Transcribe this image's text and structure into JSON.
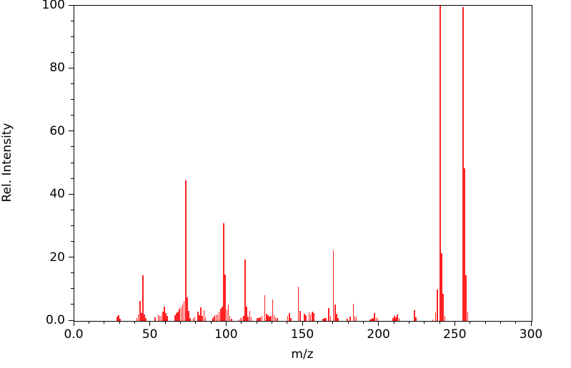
{
  "chart_data": {
    "type": "bar",
    "subtype": "mass-spectrum",
    "title": "",
    "xlabel": "m/z",
    "ylabel": "Rel. Intensity",
    "xlim": [
      0,
      300
    ],
    "ylim": [
      0,
      100
    ],
    "grid": false,
    "legend": "none",
    "background_color": "#ffffff",
    "frame_color": "#000000",
    "bar_color": "#ff2222",
    "x_major_ticks": [
      0,
      50,
      100,
      150,
      200,
      250,
      300
    ],
    "x_major_tick_labels": [
      "0.0",
      "50",
      "100",
      "150",
      "200",
      "250",
      "300"
    ],
    "x_minor_tick_step": 10,
    "y_major_ticks": [
      0,
      20,
      40,
      60,
      80,
      100
    ],
    "y_major_tick_labels": [
      "0.0",
      "20",
      "40",
      "60",
      "80",
      "100"
    ],
    "y_minor_tick_step": 5,
    "series": [
      {
        "name": "relative-intensity",
        "peaks": [
          [
            28,
            1.3
          ],
          [
            29,
            1.8
          ],
          [
            30,
            0.6
          ],
          [
            41,
            1.0
          ],
          [
            42,
            2.0
          ],
          [
            43,
            6.3
          ],
          [
            44,
            2.6
          ],
          [
            45,
            14.5
          ],
          [
            46,
            2.0
          ],
          [
            47,
            1.0
          ],
          [
            53,
            1.2
          ],
          [
            55,
            2.0
          ],
          [
            56,
            1.5
          ],
          [
            57,
            1.5
          ],
          [
            58,
            3.0
          ],
          [
            59,
            4.6
          ],
          [
            60,
            2.6
          ],
          [
            61,
            1.6
          ],
          [
            66,
            1.8
          ],
          [
            67,
            2.4
          ],
          [
            68,
            2.9
          ],
          [
            69,
            3.8
          ],
          [
            70,
            4.5
          ],
          [
            71,
            5.2
          ],
          [
            72,
            6.4
          ],
          [
            73,
            44.5
          ],
          [
            74,
            7.4
          ],
          [
            75,
            3.1
          ],
          [
            76,
            1.0
          ],
          [
            78,
            0.8
          ],
          [
            79,
            1.4
          ],
          [
            81,
            3.0
          ],
          [
            82,
            1.8
          ],
          [
            83,
            4.4
          ],
          [
            84,
            1.5
          ],
          [
            85,
            3.3
          ],
          [
            86,
            1.2
          ],
          [
            91,
            1.0
          ],
          [
            92,
            1.6
          ],
          [
            93,
            2.0
          ],
          [
            94,
            1.9
          ],
          [
            95,
            3.0
          ],
          [
            96,
            3.8
          ],
          [
            97,
            4.5
          ],
          [
            98,
            31.0
          ],
          [
            99,
            14.8
          ],
          [
            100,
            3.7
          ],
          [
            101,
            5.2
          ],
          [
            102,
            1.7
          ],
          [
            103,
            0.7
          ],
          [
            108,
            0.5
          ],
          [
            109,
            0.9
          ],
          [
            110,
            1.2
          ],
          [
            111,
            1.5
          ],
          [
            112,
            19.5
          ],
          [
            113,
            4.6
          ],
          [
            114,
            1.3
          ],
          [
            115,
            3.2
          ],
          [
            116,
            1.2
          ],
          [
            120,
            1.0
          ],
          [
            121,
            1.0
          ],
          [
            122,
            1.2
          ],
          [
            123,
            1.5
          ],
          [
            125,
            8.1
          ],
          [
            126,
            2.3
          ],
          [
            127,
            1.8
          ],
          [
            128,
            1.4
          ],
          [
            129,
            1.5
          ],
          [
            130,
            6.7
          ],
          [
            131,
            1.8
          ],
          [
            132,
            1.2
          ],
          [
            133,
            0.9
          ],
          [
            140,
            1.5
          ],
          [
            141,
            2.4
          ],
          [
            142,
            1.0
          ],
          [
            147,
            10.8
          ],
          [
            148,
            3.2
          ],
          [
            151,
            2.2
          ],
          [
            152,
            1.8
          ],
          [
            154,
            2.8
          ],
          [
            155,
            2.0
          ],
          [
            156,
            3.0
          ],
          [
            157,
            2.5
          ],
          [
            163,
            0.6
          ],
          [
            164,
            0.8
          ],
          [
            165,
            1.0
          ],
          [
            167,
            4.0
          ],
          [
            168,
            1.5
          ],
          [
            170,
            22.5
          ],
          [
            171,
            5.2
          ],
          [
            172,
            2.2
          ],
          [
            173,
            0.8
          ],
          [
            179,
            0.6
          ],
          [
            181,
            1.3
          ],
          [
            183,
            5.4
          ],
          [
            184,
            1.7
          ],
          [
            185,
            1.2
          ],
          [
            194,
            0.5
          ],
          [
            195,
            0.7
          ],
          [
            196,
            0.8
          ],
          [
            197,
            2.5
          ],
          [
            198,
            1.2
          ],
          [
            199,
            0.6
          ],
          [
            209,
            0.8
          ],
          [
            210,
            1.5
          ],
          [
            211,
            1.2
          ],
          [
            212,
            2.1
          ],
          [
            213,
            1.0
          ],
          [
            223,
            3.4
          ],
          [
            224,
            1.2
          ],
          [
            235,
            0.5
          ],
          [
            237,
            2.8
          ],
          [
            238,
            10.0
          ],
          [
            240,
            100.0
          ],
          [
            241,
            21.5
          ],
          [
            242,
            8.5
          ],
          [
            243,
            1.5
          ],
          [
            255,
            99.5
          ],
          [
            256,
            48.5
          ],
          [
            257,
            14.5
          ],
          [
            258,
            3.0
          ]
        ]
      }
    ]
  }
}
